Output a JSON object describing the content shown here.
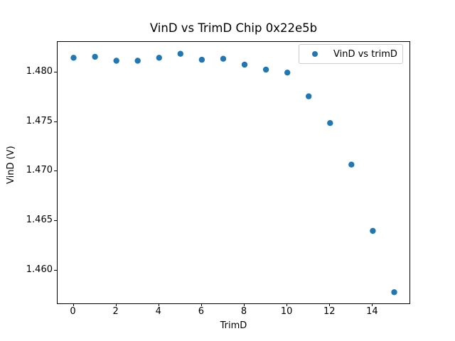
{
  "chart_data": {
    "type": "scatter",
    "title": "VinD vs TrimD Chip 0x22e5b",
    "xlabel": "TrimD",
    "ylabel": "VinD (V)",
    "series": [
      {
        "name": "VinD vs trimD",
        "x": [
          0,
          1,
          2,
          3,
          4,
          5,
          6,
          7,
          8,
          9,
          10,
          11,
          12,
          13,
          14,
          15
        ],
        "y": [
          1.4815,
          1.4816,
          1.4812,
          1.4812,
          1.4815,
          1.4819,
          1.4813,
          1.4814,
          1.4808,
          1.4803,
          1.48,
          1.4776,
          1.4749,
          1.4707,
          1.464,
          1.4578
        ],
        "marker": "circle",
        "marker_color": "#1f77b4",
        "marker_diameter_px": 8.4
      }
    ],
    "xlim": [
      -0.75,
      15.75
    ],
    "ylim": [
      1.4566,
      1.4831
    ],
    "x_ticks": [
      0,
      2,
      4,
      6,
      8,
      10,
      12,
      14
    ],
    "x_tick_labels": [
      "0",
      "2",
      "4",
      "6",
      "8",
      "10",
      "12",
      "14"
    ],
    "y_ticks": [
      1.46,
      1.465,
      1.47,
      1.475,
      1.48
    ],
    "y_tick_labels": [
      "1.460",
      "1.465",
      "1.470",
      "1.475",
      "1.480"
    ],
    "grid": false,
    "legend_position": "upper right",
    "colors": {
      "background": "#ffffff",
      "spine": "#000000",
      "text": "#000000",
      "legend_border": "#cccccc"
    }
  }
}
